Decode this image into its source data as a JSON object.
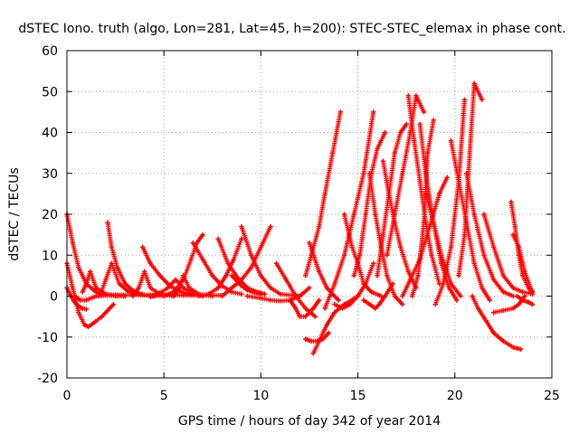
{
  "chart_data": {
    "type": "scatter",
    "title": "dSTEC Iono. truth (algo, Lon=281, Lat=45, h=200): STEC-STEC_elemax in phase cont.",
    "xlabel": "GPS time / hours of day 342 of year 2014",
    "ylabel": "dSTEC  / TECUs",
    "xlim": [
      0,
      25
    ],
    "ylim": [
      -20,
      60
    ],
    "xticks": [
      0,
      5,
      10,
      15,
      20,
      25
    ],
    "yticks": [
      -20,
      -10,
      0,
      10,
      20,
      30,
      40,
      50,
      60
    ],
    "grid": true,
    "marker": "+",
    "color": "#ff0000",
    "series": [
      {
        "x": [
          0.0,
          0.3,
          0.6,
          0.9,
          1.1,
          1.4,
          1.8,
          2.2,
          2.4
        ],
        "y": [
          8,
          2,
          -4,
          -7,
          -7.5,
          -6.5,
          -5,
          -3,
          -2
        ]
      },
      {
        "x": [
          0.0,
          0.3,
          0.6,
          1.0,
          1.5,
          2.0,
          2.5,
          3.0
        ],
        "y": [
          20,
          13,
          7,
          3,
          1,
          0.3,
          0,
          0
        ]
      },
      {
        "x": [
          0.0,
          0.2,
          0.4,
          0.6,
          0.8,
          1.0
        ],
        "y": [
          2,
          0,
          -1.5,
          -2.5,
          -3,
          -3.2
        ]
      },
      {
        "x": [
          0.4,
          0.7,
          1.0,
          1.5,
          2.5,
          4.0,
          6.0,
          8.0
        ],
        "y": [
          0,
          -1,
          -1,
          0,
          0.3,
          0.3,
          0.2,
          0.2
        ]
      },
      {
        "x": [
          0.8,
          1.0,
          1.2,
          1.5,
          2.0,
          3.0
        ],
        "y": [
          1,
          3,
          6,
          2,
          0.5,
          0
        ]
      },
      {
        "x": [
          1.7,
          2.0,
          2.3,
          2.7,
          3.2,
          3.8,
          4.5
        ],
        "y": [
          0,
          4,
          8,
          3,
          1,
          0.3,
          0
        ]
      },
      {
        "x": [
          2.1,
          2.3,
          2.6,
          3.0,
          3.5,
          4.0,
          5.0
        ],
        "y": [
          18,
          12,
          7,
          3,
          1,
          0.3,
          0
        ]
      },
      {
        "x": [
          3.4,
          3.7,
          4.0,
          4.3,
          4.8,
          5.5
        ],
        "y": [
          0,
          2,
          6,
          2,
          0.5,
          0
        ]
      },
      {
        "x": [
          3.9,
          4.3,
          4.8,
          5.3,
          5.9,
          6.5,
          7.0
        ],
        "y": [
          12,
          8,
          5,
          2.5,
          1,
          0.3,
          0
        ]
      },
      {
        "x": [
          4.3,
          4.7,
          5.2,
          5.6,
          6.0,
          6.5
        ],
        "y": [
          -0.2,
          0.5,
          2,
          4,
          2,
          0.5
        ]
      },
      {
        "x": [
          5.0,
          5.5,
          6.0,
          6.4,
          6.7,
          7.0
        ],
        "y": [
          0,
          1,
          4,
          9,
          13,
          15
        ]
      },
      {
        "x": [
          5.5,
          5.8,
          6.0,
          6.3,
          6.8,
          7.5
        ],
        "y": [
          0,
          2,
          5,
          2,
          0.5,
          0
        ]
      },
      {
        "x": [
          6.5,
          7.0,
          7.5,
          8.0,
          8.5,
          9.0
        ],
        "y": [
          13,
          9,
          5,
          2.5,
          1,
          0.5
        ]
      },
      {
        "x": [
          6.8,
          7.3,
          7.8,
          8.2,
          8.6,
          9.0
        ],
        "y": [
          0,
          0.5,
          2,
          5,
          9,
          14
        ]
      },
      {
        "x": [
          7.8,
          8.3,
          8.8,
          9.3,
          9.8,
          10.2
        ],
        "y": [
          14,
          8,
          4.5,
          2,
          1,
          0.5
        ]
      },
      {
        "x": [
          8.0,
          8.5,
          9.0,
          9.5,
          10.0,
          10.5
        ],
        "y": [
          0,
          2,
          4,
          7,
          12,
          17
        ]
      },
      {
        "x": [
          8.5,
          9.0,
          9.3,
          9.6,
          10.0
        ],
        "y": [
          5,
          2.5,
          1.5,
          1,
          0.5
        ]
      },
      {
        "x": [
          9.0,
          9.5,
          10.0,
          10.5,
          11.0,
          12.0
        ],
        "y": [
          17,
          10,
          5,
          2,
          0.5,
          0
        ]
      },
      {
        "x": [
          9.3,
          10.0,
          10.5,
          11.0,
          11.5,
          12.0,
          12.5
        ],
        "y": [
          0,
          -0.5,
          -1,
          -1.2,
          -1,
          0,
          2
        ]
      },
      {
        "x": [
          10.8,
          11.3,
          11.8,
          12.3,
          12.8
        ],
        "y": [
          8,
          4,
          0,
          -3,
          -5
        ]
      },
      {
        "x": [
          11.5,
          11.8,
          12.0,
          12.3,
          12.7,
          13.0
        ],
        "y": [
          -1,
          -3,
          -5,
          -5,
          -3,
          -1
        ]
      },
      {
        "x": [
          12.3,
          12.6,
          13.0,
          13.3,
          13.7,
          14.1
        ],
        "y": [
          5,
          10,
          17,
          25,
          35,
          45
        ]
      },
      {
        "x": [
          12.5,
          13.0,
          13.4,
          13.8,
          14.0
        ],
        "y": [
          13,
          6,
          2,
          0,
          -1
        ]
      },
      {
        "x": [
          12.3,
          12.6,
          12.9,
          13.2,
          13.5
        ],
        "y": [
          -10.5,
          -11,
          -11,
          -10.5,
          -9
        ]
      },
      {
        "x": [
          12.7,
          13.0,
          13.4,
          13.8,
          14.3,
          15.0
        ],
        "y": [
          -14,
          -11,
          -7,
          -4,
          -2,
          0
        ]
      },
      {
        "x": [
          13.3,
          13.8,
          14.3,
          14.8,
          15.3,
          15.8
        ],
        "y": [
          -3,
          3,
          10,
          20,
          30,
          45
        ]
      },
      {
        "x": [
          13.8,
          14.2,
          14.6,
          15.0,
          15.4,
          15.8
        ],
        "y": [
          -2,
          -3,
          -2,
          0,
          3,
          8
        ]
      },
      {
        "x": [
          14.3,
          14.7,
          15.0,
          15.3,
          15.7,
          16.2
        ],
        "y": [
          20,
          12,
          8,
          3,
          1,
          0
        ]
      },
      {
        "x": [
          14.8,
          15.1,
          15.4,
          15.7,
          16.0,
          16.4
        ],
        "y": [
          5,
          10,
          20,
          30,
          36,
          40
        ]
      },
      {
        "x": [
          15.3,
          15.6,
          15.9,
          16.1,
          16.4,
          16.8
        ],
        "y": [
          -1,
          -2,
          -3,
          -2,
          0,
          3
        ]
      },
      {
        "x": [
          15.6,
          15.9,
          16.2,
          16.5,
          16.9,
          17.3
        ],
        "y": [
          30,
          20,
          12,
          5,
          0,
          -2
        ]
      },
      {
        "x": [
          16.0,
          16.3,
          16.6,
          16.9,
          17.2,
          17.5
        ],
        "y": [
          5,
          15,
          25,
          35,
          40,
          42
        ]
      },
      {
        "x": [
          16.3,
          16.6,
          16.9,
          17.2,
          17.6,
          18.0
        ],
        "y": [
          33,
          25,
          18,
          12,
          6,
          2
        ]
      },
      {
        "x": [
          16.5,
          16.9,
          17.3,
          17.7,
          18.0,
          18.4
        ],
        "y": [
          10,
          20,
          30,
          40,
          49,
          45
        ]
      },
      {
        "x": [
          17.3,
          17.7,
          18.2,
          18.7,
          19.2,
          19.6
        ],
        "y": [
          0,
          4,
          9,
          17,
          25,
          29
        ]
      },
      {
        "x": [
          17.6,
          17.9,
          18.2,
          18.5,
          18.8,
          19.2
        ],
        "y": [
          49,
          38,
          28,
          18,
          10,
          3
        ]
      },
      {
        "x": [
          17.8,
          18.1,
          18.4,
          18.6,
          18.9
        ],
        "y": [
          0,
          5,
          18,
          35,
          43
        ]
      },
      {
        "x": [
          18.2,
          18.5,
          18.9,
          19.3,
          19.7,
          20.1
        ],
        "y": [
          42,
          30,
          18,
          8,
          2,
          -1
        ]
      },
      {
        "x": [
          18.5,
          18.9,
          19.3,
          19.8,
          20.3
        ],
        "y": [
          25,
          18,
          10,
          3,
          0
        ]
      },
      {
        "x": [
          19.0,
          19.4,
          19.8,
          20.2,
          20.5
        ],
        "y": [
          -2,
          3,
          12,
          28,
          48
        ]
      },
      {
        "x": [
          19.8,
          20.2,
          20.6,
          21.0,
          21.4,
          21.8
        ],
        "y": [
          38,
          28,
          18,
          8,
          2,
          -1
        ]
      },
      {
        "x": [
          20.2,
          20.5,
          20.7,
          21.0,
          21.4
        ],
        "y": [
          5,
          15,
          30,
          52,
          48
        ]
      },
      {
        "x": [
          20.6,
          21.0,
          21.5,
          22.0,
          22.5,
          23.0
        ],
        "y": [
          30,
          20,
          10,
          4,
          1,
          0
        ]
      },
      {
        "x": [
          20.9,
          21.2,
          21.6,
          22.0,
          22.5,
          23.0,
          23.4
        ],
        "y": [
          0,
          -3,
          -6,
          -9,
          -11,
          -12.5,
          -13
        ]
      },
      {
        "x": [
          21.5,
          22.0,
          22.5,
          23.0,
          23.5,
          24.0
        ],
        "y": [
          20,
          12,
          5,
          2,
          1,
          0.5
        ]
      },
      {
        "x": [
          22.0,
          22.5,
          23.0,
          23.3,
          23.6
        ],
        "y": [
          -4,
          -3.5,
          -3,
          -2,
          0
        ]
      },
      {
        "x": [
          22.9,
          23.1,
          23.3,
          23.5,
          23.8,
          24.0
        ],
        "y": [
          23,
          17,
          10,
          5,
          2,
          0.5
        ]
      },
      {
        "x": [
          23.0,
          23.3,
          23.6,
          23.9,
          24.0
        ],
        "y": [
          15,
          12,
          6,
          2,
          1
        ]
      },
      {
        "x": [
          23.2,
          23.5,
          23.8,
          24.0
        ],
        "y": [
          0,
          -1,
          -1.5,
          -2
        ]
      }
    ]
  }
}
